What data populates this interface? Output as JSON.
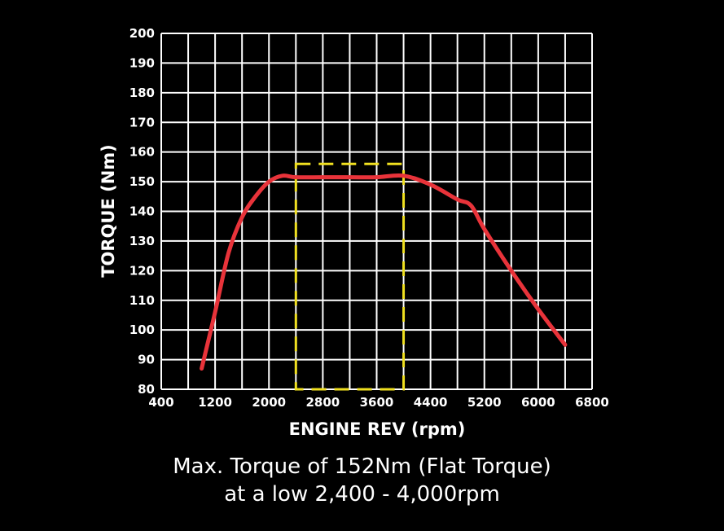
{
  "chart_data": {
    "type": "line",
    "title": "",
    "xlabel": "ENGINE REV (rpm)",
    "ylabel": "TORQUE (Nm)",
    "xlim": [
      400,
      6800
    ],
    "ylim": [
      80,
      200
    ],
    "x_minor_step": 400,
    "y_step": 10,
    "x_tick_labels": [
      "400",
      "1200",
      "2000",
      "2800",
      "3600",
      "4400",
      "5200",
      "6000",
      "6800"
    ],
    "y_tick_labels": [
      "80",
      "90",
      "100",
      "110",
      "120",
      "130",
      "140",
      "150",
      "160",
      "170",
      "180",
      "190",
      "200"
    ],
    "grid": true,
    "colors": {
      "background": "#000000",
      "grid": "#ffffff",
      "curve": "#e8333a",
      "highlight": "#f0e020"
    },
    "series": [
      {
        "points": [
          [
            1000,
            87
          ],
          [
            1200,
            106
          ],
          [
            1400,
            126
          ],
          [
            1600,
            138
          ],
          [
            1800,
            145
          ],
          [
            2000,
            150
          ],
          [
            2200,
            152
          ],
          [
            2400,
            151.5
          ],
          [
            2800,
            151.5
          ],
          [
            3200,
            151.5
          ],
          [
            3600,
            151.5
          ],
          [
            4000,
            152
          ],
          [
            4400,
            149
          ],
          [
            4800,
            144
          ],
          [
            5000,
            142
          ],
          [
            5200,
            134
          ],
          [
            5600,
            120
          ],
          [
            6000,
            107
          ],
          [
            6400,
            95
          ]
        ]
      }
    ],
    "highlight_region": {
      "x": [
        2400,
        4000
      ],
      "y": [
        80,
        156
      ]
    }
  },
  "caption": {
    "line1": "Max. Torque of 152Nm (Flat Torque)",
    "line2": "at a low 2,400 - 4,000rpm"
  }
}
